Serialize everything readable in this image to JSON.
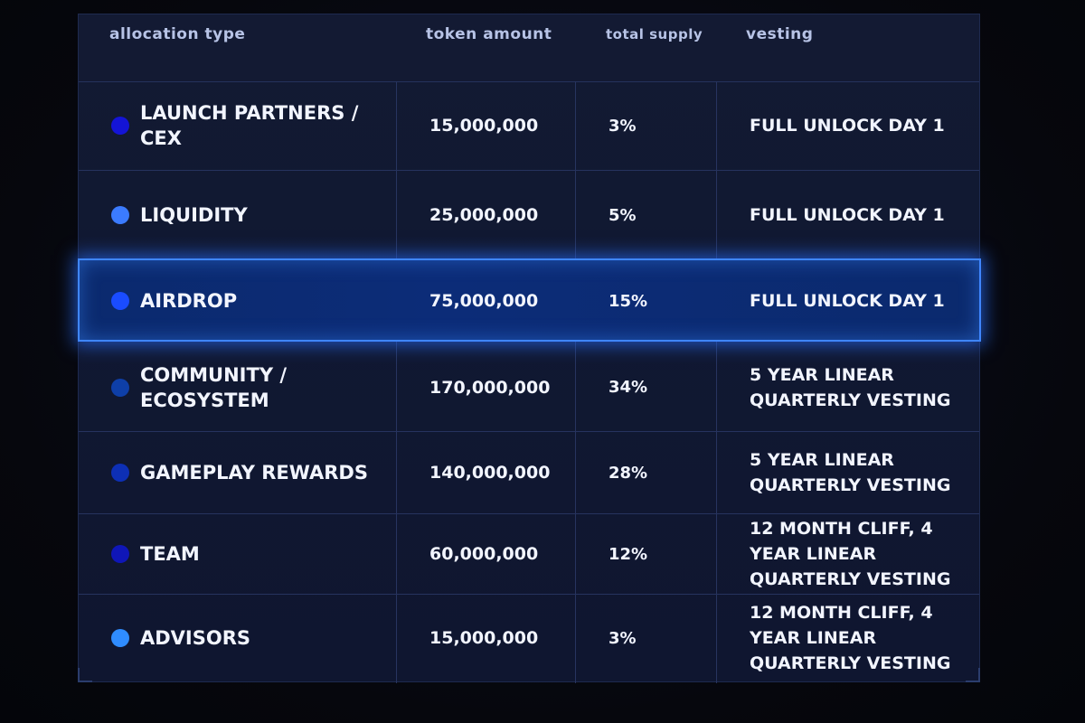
{
  "header": {
    "allocation_type": "allocation type",
    "token_amount": "token amount",
    "total_supply": "total supply",
    "vesting": "vesting"
  },
  "rows": [
    {
      "name": "LAUNCH PARTNERS / CEX",
      "amount": "15,000,000",
      "supply": "3%",
      "vesting": "FULL UNLOCK DAY 1",
      "dot_color": "#1414d6"
    },
    {
      "name": "LIQUIDITY",
      "amount": "25,000,000",
      "supply": "5%",
      "vesting": "FULL UNLOCK DAY 1",
      "dot_color": "#3b7bff"
    },
    {
      "name": "AIRDROP",
      "amount": "75,000,000",
      "supply": "15%",
      "vesting": "FULL UNLOCK DAY 1",
      "dot_color": "#1a4cff"
    },
    {
      "name": "COMMUNITY / ECOSYSTEM",
      "amount": "170,000,000",
      "supply": "34%",
      "vesting": "5 YEAR LINEAR QUARTERLY VESTING",
      "dot_color": "#0e3fa8"
    },
    {
      "name": "GAMEPLAY REWARDS",
      "amount": "140,000,000",
      "supply": "28%",
      "vesting": "5 YEAR LINEAR QUARTERLY VESTING",
      "dot_color": "#0d2fb5"
    },
    {
      "name": "TEAM",
      "amount": "60,000,000",
      "supply": "12%",
      "vesting": "12 MONTH CLIFF, 4 YEAR LINEAR QUARTERLY VESTING",
      "dot_color": "#0f16b8"
    },
    {
      "name": "ADVISORS",
      "amount": "15,000,000",
      "supply": "3%",
      "vesting": "12 MONTH CLIFF, 4 YEAR LINEAR QUARTERLY VESTING",
      "dot_color": "#2f8cff"
    }
  ],
  "colors": {
    "highlight_border": "#3f86ff",
    "text": "#f2f5ff",
    "header_text": "#b7c3e6"
  }
}
